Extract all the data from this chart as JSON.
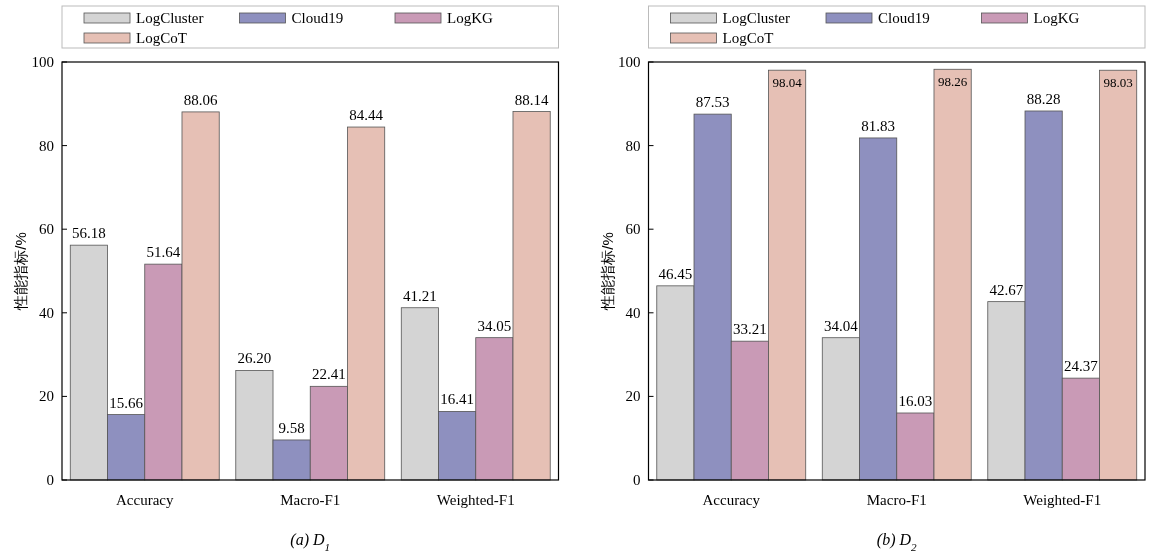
{
  "chart_data": [
    {
      "type": "bar",
      "title": "(a) D$_{1}$",
      "ylabel": "性能指标/%",
      "categories": [
        "Accuracy",
        "Macro-F1",
        "Weighted-F1"
      ],
      "ylim": [
        0,
        100
      ],
      "yticks": [
        0,
        20,
        40,
        60,
        80,
        100
      ],
      "legend": "top",
      "grid": false,
      "series": [
        {
          "name": "LogCluster",
          "color": "#d4d4d4",
          "values": [
            56.18,
            26.2,
            41.21
          ],
          "value_labels": [
            "56.18",
            "26.20",
            "41.21"
          ]
        },
        {
          "name": "Cloud19",
          "color": "#8e90bf",
          "values": [
            15.66,
            9.58,
            16.41
          ],
          "value_labels": [
            "15.66",
            "9.58",
            "16.41"
          ]
        },
        {
          "name": "LogKG",
          "color": "#c99ab6",
          "values": [
            51.64,
            22.41,
            34.05
          ],
          "value_labels": [
            "51.64",
            "22.41",
            "34.05"
          ]
        },
        {
          "name": "LogCoT",
          "color": "#e6c0b5",
          "values": [
            88.06,
            84.44,
            88.14
          ],
          "value_labels": [
            "88.06",
            "84.44",
            "88.14"
          ]
        }
      ]
    },
    {
      "type": "bar",
      "title": "(b) D$_{2}$",
      "ylabel": "性能指标/%",
      "categories": [
        "Accuracy",
        "Macro-F1",
        "Weighted-F1"
      ],
      "ylim": [
        0,
        100
      ],
      "yticks": [
        0,
        20,
        40,
        60,
        80,
        100
      ],
      "legend": "top",
      "grid": false,
      "series": [
        {
          "name": "LogCluster",
          "color": "#d4d4d4",
          "values": [
            46.45,
            34.04,
            42.67
          ],
          "value_labels": [
            "46.45",
            "34.04",
            "42.67"
          ]
        },
        {
          "name": "Cloud19",
          "color": "#8e90bf",
          "values": [
            87.53,
            81.83,
            88.28
          ],
          "value_labels": [
            "87.53",
            "81.83",
            "88.28"
          ]
        },
        {
          "name": "LogKG",
          "color": "#c99ab6",
          "values": [
            33.21,
            16.03,
            24.37
          ],
          "value_labels": [
            "33.21",
            "16.03",
            "24.37"
          ]
        },
        {
          "name": "LogCoT",
          "color": "#e6c0b5",
          "values": [
            98.04,
            98.26,
            98.03
          ],
          "value_labels": [
            "98.04",
            "98.26",
            "98.03"
          ]
        }
      ]
    }
  ]
}
